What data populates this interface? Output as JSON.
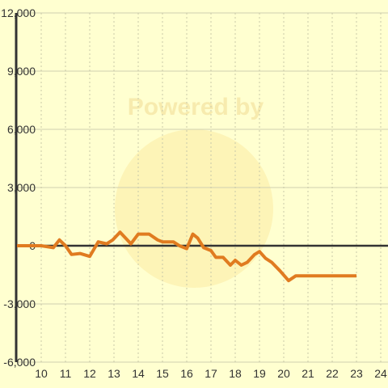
{
  "chart_data": {
    "type": "line",
    "watermark": "Powered by",
    "x": [
      9,
      10,
      10.5,
      10.75,
      11,
      11.25,
      11.6,
      12,
      12.35,
      12.7,
      12.95,
      13.25,
      13.7,
      14,
      14.45,
      14.8,
      15,
      15.45,
      15.7,
      16,
      16.25,
      16.45,
      16.7,
      17,
      17.2,
      17.5,
      17.8,
      18,
      18.25,
      18.5,
      18.8,
      19,
      19.25,
      19.5,
      19.85,
      20.2,
      20.5,
      23
    ],
    "series": [
      {
        "color": "#e07b20",
        "values": [
          0,
          0,
          -100,
          300,
          0,
          -450,
          -400,
          -550,
          200,
          100,
          300,
          700,
          100,
          600,
          600,
          300,
          200,
          200,
          0,
          -150,
          600,
          400,
          -100,
          -250,
          -600,
          -600,
          -1000,
          -750,
          -1000,
          -850,
          -450,
          -300,
          -650,
          -850,
          -1300,
          -1800,
          -1550,
          -1550
        ]
      }
    ],
    "xlim": [
      9,
      24.3
    ],
    "xticks": [
      10,
      11,
      12,
      13,
      14,
      15,
      16,
      17,
      18,
      19,
      20,
      21,
      22,
      23,
      24
    ],
    "ylim": [
      -6000,
      12000
    ],
    "yticks": [
      {
        "value": -6000,
        "label": "-6,000"
      },
      {
        "value": -3000,
        "label": "-3,000"
      },
      0,
      {
        "value": 3000,
        "label": "3,000"
      },
      {
        "value": 6000,
        "label": "6,000"
      },
      {
        "value": 9000,
        "label": "9,000"
      },
      {
        "value": 12000,
        "label": "12,000"
      }
    ],
    "grid": true
  }
}
